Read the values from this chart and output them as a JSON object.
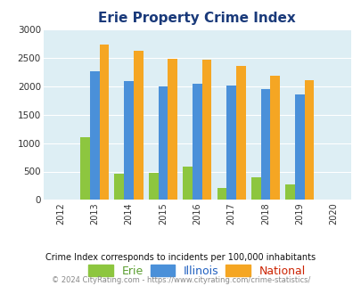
{
  "title": "Erie Property Crime Index",
  "years": [
    2013,
    2014,
    2015,
    2016,
    2017,
    2018,
    2019
  ],
  "erie": [
    1100,
    460,
    480,
    590,
    215,
    400,
    280
  ],
  "illinois": [
    2270,
    2090,
    2000,
    2050,
    2020,
    1950,
    1860
  ],
  "national": [
    2730,
    2620,
    2490,
    2460,
    2360,
    2190,
    2100
  ],
  "erie_color": "#8dc63f",
  "illinois_color": "#4a90d9",
  "national_color": "#f5a623",
  "bg_color": "#ddeef4",
  "xlim": [
    2011.5,
    2020.5
  ],
  "ylim": [
    0,
    3000
  ],
  "yticks": [
    0,
    500,
    1000,
    1500,
    2000,
    2500,
    3000
  ],
  "title_color": "#1a3a7a",
  "legend_labels": [
    "Erie",
    "Illinois",
    "National"
  ],
  "legend_label_colors": [
    "#5a9e2f",
    "#2060c0",
    "#cc2200"
  ],
  "footnote1": "Crime Index corresponds to incidents per 100,000 inhabitants",
  "footnote2": "© 2024 CityRating.com - https://www.cityrating.com/crime-statistics/",
  "footnote1_color": "#111111",
  "footnote2_color": "#888888",
  "bar_width": 0.28
}
